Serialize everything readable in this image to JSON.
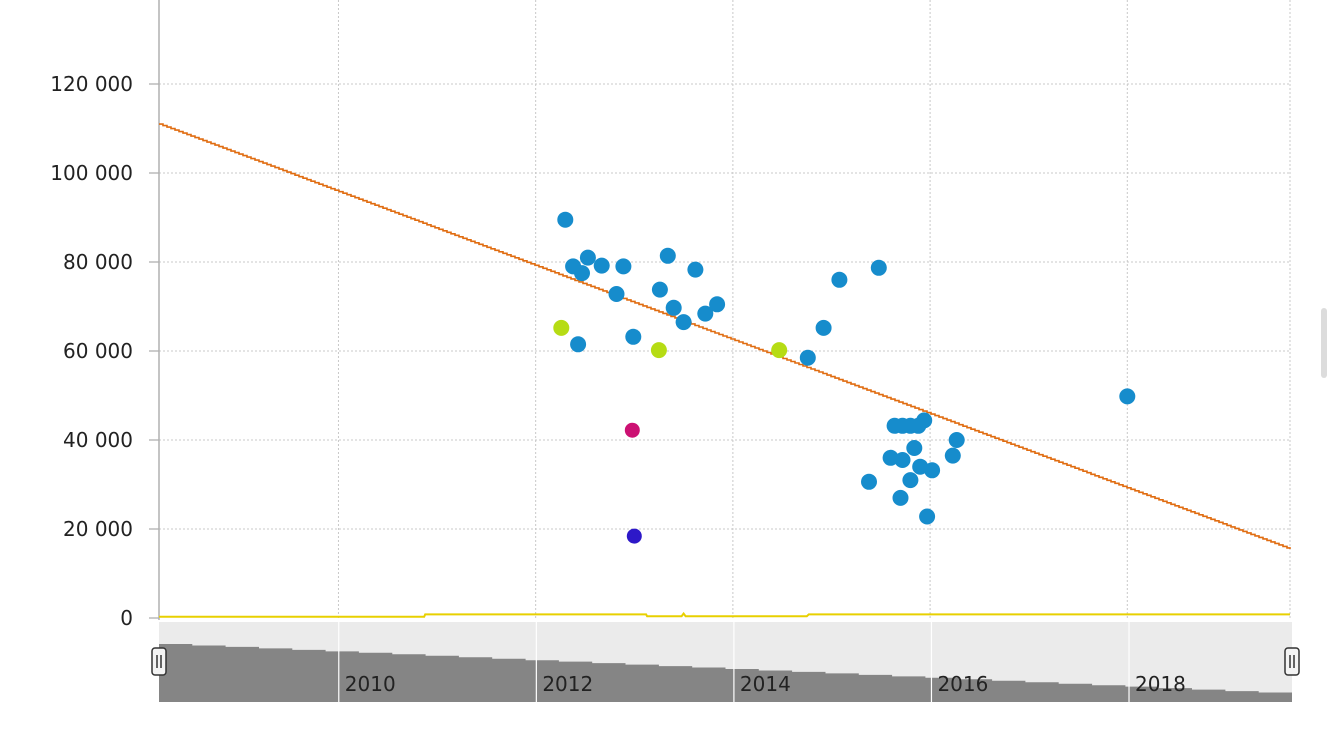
{
  "colors": {
    "scatter": "#168ccc",
    "highlight_lime": "#b6dc14",
    "highlight_magenta": "#cc1173",
    "highlight_indigo": "#2d18c8",
    "trend": "#e06c10",
    "baseline": "#e8d000",
    "navigator_bg": "#ebebeb",
    "navigator_fill": "#858585"
  },
  "chart_data": {
    "type": "scatter",
    "y_ticks": [
      "0",
      "20 000",
      "40 000",
      "60 000",
      "80 000",
      "100 000",
      "120 000"
    ],
    "y_tick_values": [
      0,
      20000,
      40000,
      60000,
      80000,
      100000,
      120000
    ],
    "ylim": [
      0,
      140000
    ],
    "xlim": [
      2008.18,
      2019.65
    ],
    "x_gridlines": [
      2010,
      2012,
      2014,
      2016,
      2018
    ],
    "grid": true,
    "trend_line": {
      "x": [
        2008.18,
        2019.65
      ],
      "y": [
        111000,
        15500
      ]
    },
    "baseline_line": {
      "x": [
        2008.18,
        2010.87,
        2010.88,
        2013.12,
        2013.13,
        2013.48,
        2013.5,
        2013.52,
        2013.53,
        2014.75,
        2014.77,
        2019.65
      ],
      "y": [
        300,
        300,
        800,
        800,
        400,
        400,
        1000,
        400,
        400,
        400,
        800,
        800
      ]
    },
    "points": [
      {
        "x": 2012.3,
        "y": 89500,
        "group": "blue"
      },
      {
        "x": 2012.38,
        "y": 79000,
        "group": "blue"
      },
      {
        "x": 2012.47,
        "y": 77500,
        "group": "blue"
      },
      {
        "x": 2012.53,
        "y": 81000,
        "group": "blue"
      },
      {
        "x": 2012.67,
        "y": 79200,
        "group": "blue"
      },
      {
        "x": 2012.82,
        "y": 72800,
        "group": "blue"
      },
      {
        "x": 2012.89,
        "y": 79000,
        "group": "blue"
      },
      {
        "x": 2012.43,
        "y": 61500,
        "group": "blue"
      },
      {
        "x": 2012.99,
        "y": 63200,
        "group": "blue"
      },
      {
        "x": 2013.26,
        "y": 73800,
        "group": "blue"
      },
      {
        "x": 2013.34,
        "y": 81400,
        "group": "blue"
      },
      {
        "x": 2013.4,
        "y": 69700,
        "group": "blue"
      },
      {
        "x": 2013.5,
        "y": 66500,
        "group": "blue"
      },
      {
        "x": 2013.62,
        "y": 78300,
        "group": "blue"
      },
      {
        "x": 2013.72,
        "y": 68400,
        "group": "blue"
      },
      {
        "x": 2013.84,
        "y": 70500,
        "group": "blue"
      },
      {
        "x": 2014.76,
        "y": 58500,
        "group": "blue"
      },
      {
        "x": 2014.92,
        "y": 65200,
        "group": "blue"
      },
      {
        "x": 2015.08,
        "y": 76000,
        "group": "blue"
      },
      {
        "x": 2015.48,
        "y": 78700,
        "group": "blue"
      },
      {
        "x": 2015.38,
        "y": 30600,
        "group": "blue"
      },
      {
        "x": 2015.6,
        "y": 36000,
        "group": "blue"
      },
      {
        "x": 2015.64,
        "y": 43200,
        "group": "blue"
      },
      {
        "x": 2015.7,
        "y": 27000,
        "group": "blue"
      },
      {
        "x": 2015.72,
        "y": 43200,
        "group": "blue"
      },
      {
        "x": 2015.72,
        "y": 35500,
        "group": "blue"
      },
      {
        "x": 2015.8,
        "y": 31000,
        "group": "blue"
      },
      {
        "x": 2015.8,
        "y": 43200,
        "group": "blue"
      },
      {
        "x": 2015.84,
        "y": 38200,
        "group": "blue"
      },
      {
        "x": 2015.88,
        "y": 43200,
        "group": "blue"
      },
      {
        "x": 2015.9,
        "y": 34000,
        "group": "blue"
      },
      {
        "x": 2015.94,
        "y": 44400,
        "group": "blue"
      },
      {
        "x": 2015.97,
        "y": 22800,
        "group": "blue"
      },
      {
        "x": 2016.02,
        "y": 33200,
        "group": "blue"
      },
      {
        "x": 2016.23,
        "y": 36500,
        "group": "blue"
      },
      {
        "x": 2016.27,
        "y": 40000,
        "group": "blue"
      },
      {
        "x": 2018.0,
        "y": 49800,
        "group": "blue"
      },
      {
        "x": 2012.26,
        "y": 65200,
        "group": "lime"
      },
      {
        "x": 2013.25,
        "y": 60200,
        "group": "lime"
      },
      {
        "x": 2014.47,
        "y": 60200,
        "group": "lime"
      },
      {
        "x": 2012.98,
        "y": 42200,
        "group": "magenta"
      },
      {
        "x": 2013.0,
        "y": 18400,
        "group": "indigo"
      }
    ]
  },
  "navigator": {
    "x_labels": [
      "2010",
      "2012",
      "2014",
      "2016",
      "2018"
    ],
    "x_label_values": [
      2010,
      2012,
      2014,
      2016,
      2018
    ]
  }
}
